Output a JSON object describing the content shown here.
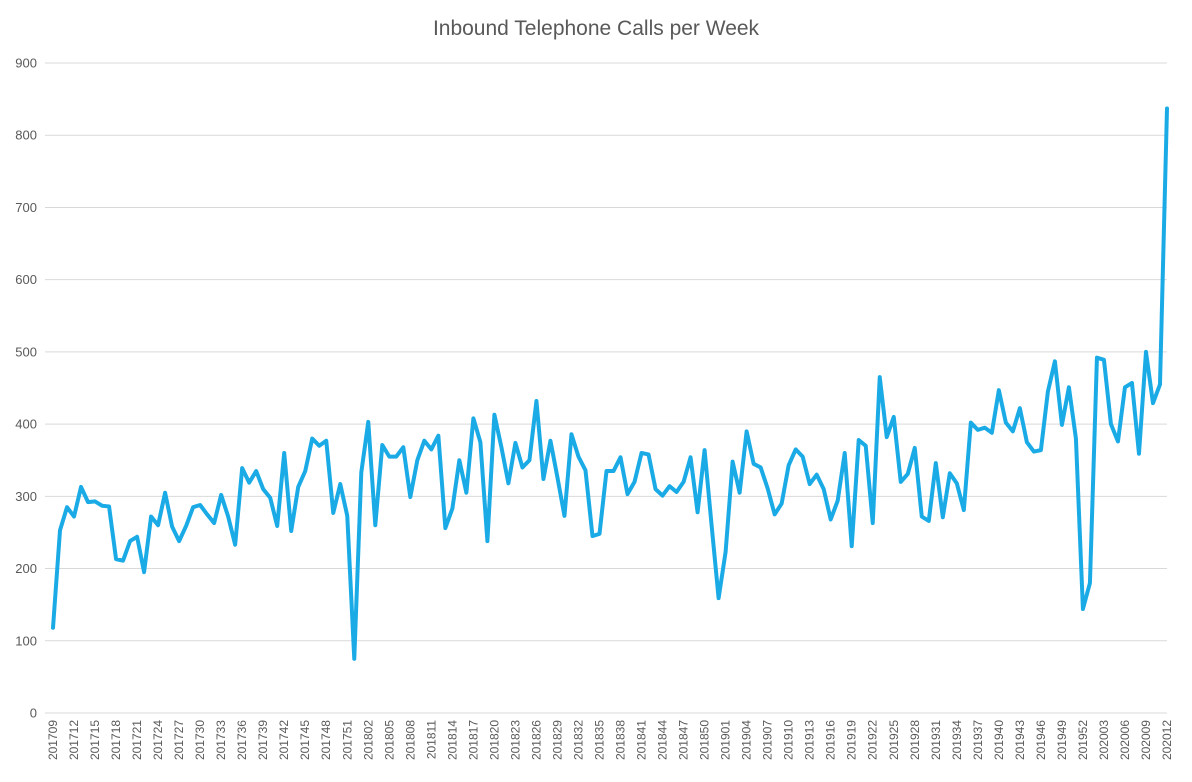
{
  "chart_data": {
    "type": "line",
    "title": "Inbound Telephone Calls per Week",
    "xlabel": "",
    "ylabel": "",
    "ylim": [
      0,
      900
    ],
    "yticks": [
      0,
      100,
      200,
      300,
      400,
      500,
      600,
      700,
      800,
      900
    ],
    "grid": true,
    "legend": "none",
    "line_color": "#1aabe6",
    "x_tick_labels": [
      "201709",
      "201712",
      "201715",
      "201718",
      "201721",
      "201724",
      "201727",
      "201730",
      "201733",
      "201736",
      "201739",
      "201742",
      "201745",
      "201748",
      "201751",
      "201802",
      "201805",
      "201808",
      "201811",
      "201814",
      "201817",
      "201820",
      "201823",
      "201826",
      "201829",
      "201832",
      "201835",
      "201838",
      "201841",
      "201844",
      "201847",
      "201850",
      "201901",
      "201904",
      "201907",
      "201910",
      "201913",
      "201916",
      "201919",
      "201922",
      "201925",
      "201928",
      "201931",
      "201934",
      "201937",
      "201940",
      "201943",
      "201946",
      "201949",
      "201952",
      "202003",
      "202006",
      "202009",
      "202012"
    ],
    "series": [
      {
        "values": [
          118,
          253,
          285,
          272,
          313,
          292,
          293,
          287,
          286,
          213,
          211,
          238,
          244,
          195,
          272,
          260,
          305,
          258,
          238,
          259,
          285,
          288,
          275,
          263,
          302,
          272,
          233,
          339,
          319,
          335,
          310,
          298,
          259,
          360,
          252,
          313,
          335,
          380,
          370,
          377,
          277,
          317,
          273,
          75,
          333,
          403,
          260,
          371,
          355,
          355,
          368,
          299,
          350,
          377,
          365,
          384,
          256,
          283,
          350,
          305,
          408,
          375,
          238,
          413,
          368,
          318,
          374,
          340,
          350,
          432,
          324,
          377,
          326,
          273,
          386,
          355,
          336,
          245,
          248,
          335,
          335,
          354,
          303,
          320,
          360,
          358,
          310,
          301,
          314,
          306,
          320,
          354,
          278,
          364,
          260,
          159,
          223,
          348,
          305,
          390,
          345,
          340,
          311,
          275,
          290,
          343,
          365,
          355,
          317,
          330,
          310,
          268,
          294,
          360,
          231,
          378,
          370,
          263,
          465,
          382,
          410,
          320,
          331,
          367,
          272,
          266,
          346,
          271,
          332,
          318,
          281,
          402,
          392,
          395,
          388,
          447,
          402,
          390,
          422,
          375,
          362,
          364,
          445,
          487,
          399,
          451,
          380,
          144,
          180,
          492,
          489,
          400,
          376,
          451,
          457,
          359,
          500,
          429,
          455,
          837
        ]
      }
    ]
  }
}
